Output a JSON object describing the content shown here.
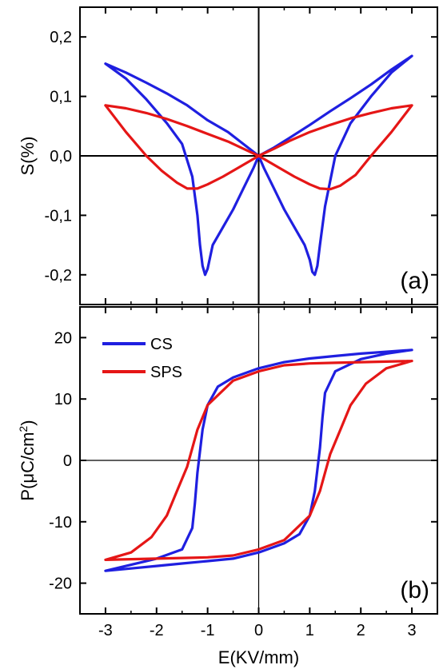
{
  "chart_data": [
    {
      "id": "a",
      "type": "line",
      "panel_label": "(a)",
      "ylabel": "S(%)",
      "xlim": [
        -3.5,
        3.5
      ],
      "ylim": [
        -0.25,
        0.25
      ],
      "yticks": [
        -0.2,
        -0.1,
        0.0,
        0.1,
        0.2
      ],
      "ytick_labels": [
        "-0,2",
        "-0,1",
        "0,0",
        "0,1",
        "0,2"
      ],
      "series": [
        {
          "color": "#1f1fe0",
          "x": [
            -3.0,
            -2.6,
            -2.2,
            -1.8,
            -1.5,
            -1.3,
            -1.2,
            -1.15,
            -1.1,
            -1.05,
            -1.0,
            -0.9,
            -0.7,
            -0.5,
            -0.3,
            -0.1,
            0.0,
            0.1,
            0.3,
            0.5,
            0.7,
            0.9,
            1.0,
            1.05,
            1.1,
            1.15,
            1.2,
            1.3,
            1.5,
            1.8,
            2.2,
            2.6,
            3.0,
            2.6,
            2.2,
            1.8,
            1.4,
            1.0,
            0.6,
            0.3,
            0.0,
            -0.3,
            -0.6,
            -1.0,
            -1.4,
            -1.8,
            -2.2,
            -2.6,
            -3.0
          ],
          "y": [
            0.155,
            0.13,
            0.095,
            0.055,
            0.02,
            -0.035,
            -0.1,
            -0.15,
            -0.185,
            -0.2,
            -0.19,
            -0.15,
            -0.12,
            -0.09,
            -0.055,
            -0.02,
            0.0,
            -0.02,
            -0.055,
            -0.09,
            -0.12,
            -0.15,
            -0.175,
            -0.195,
            -0.2,
            -0.185,
            -0.15,
            -0.085,
            0.0,
            0.055,
            0.1,
            0.14,
            0.168,
            0.145,
            0.12,
            0.097,
            0.075,
            0.052,
            0.03,
            0.014,
            0.0,
            0.02,
            0.04,
            0.06,
            0.085,
            0.105,
            0.123,
            0.14,
            0.155
          ]
        },
        {
          "color": "#e51616",
          "x": [
            -3.0,
            -2.6,
            -2.2,
            -1.9,
            -1.6,
            -1.4,
            -1.2,
            -1.0,
            -0.7,
            -0.4,
            -0.1,
            0.0,
            0.1,
            0.4,
            0.7,
            1.0,
            1.2,
            1.4,
            1.6,
            1.9,
            2.2,
            2.6,
            3.0,
            2.6,
            2.2,
            1.8,
            1.4,
            1.0,
            0.6,
            0.3,
            0.0,
            -0.3,
            -0.6,
            -1.0,
            -1.4,
            -1.8,
            -2.2,
            -2.6,
            -3.0
          ],
          "y": [
            0.085,
            0.04,
            0.0,
            -0.025,
            -0.045,
            -0.055,
            -0.055,
            -0.048,
            -0.035,
            -0.02,
            -0.005,
            0.0,
            -0.005,
            -0.02,
            -0.035,
            -0.048,
            -0.055,
            -0.056,
            -0.05,
            -0.032,
            0.0,
            0.04,
            0.085,
            0.08,
            0.072,
            0.063,
            0.052,
            0.04,
            0.025,
            0.012,
            0.0,
            0.012,
            0.024,
            0.037,
            0.05,
            0.062,
            0.072,
            0.08,
            0.085
          ]
        }
      ]
    },
    {
      "id": "b",
      "type": "line",
      "panel_label": "(b)",
      "xlabel": "E(KV/mm)",
      "ylabel_parts": [
        "P(",
        "μ",
        "C/cm",
        "2",
        ")"
      ],
      "xlim": [
        -3.5,
        3.5
      ],
      "ylim": [
        -25,
        25
      ],
      "xticks": [
        -3,
        -2,
        -1,
        0,
        1,
        2,
        3
      ],
      "xtick_labels": [
        "-3",
        "-2",
        "-1",
        "0",
        "1",
        "2",
        "3"
      ],
      "yticks": [
        -20,
        -10,
        0,
        10,
        20
      ],
      "ytick_labels": [
        "-20",
        "-10",
        "0",
        "10",
        "20"
      ],
      "legend_position": "top-left",
      "series": [
        {
          "name": "CS",
          "color": "#1f1fe0",
          "x": [
            3.0,
            2.5,
            2.0,
            1.5,
            1.0,
            0.5,
            0.0,
            -0.5,
            -0.8,
            -1.0,
            -1.1,
            -1.2,
            -1.25,
            -1.3,
            -1.5,
            -2.0,
            -2.5,
            -3.0,
            -2.5,
            -2.0,
            -1.5,
            -1.0,
            -0.5,
            0.0,
            0.5,
            0.8,
            1.0,
            1.1,
            1.2,
            1.25,
            1.3,
            1.5,
            2.0,
            2.5,
            3.0
          ],
          "y": [
            18.0,
            17.7,
            17.4,
            17.0,
            16.6,
            16.0,
            15.0,
            13.5,
            12.0,
            9.0,
            5.0,
            -2.0,
            -7.0,
            -11.0,
            -14.5,
            -16.0,
            -17.0,
            -18.0,
            -17.6,
            -17.2,
            -16.8,
            -16.4,
            -16.0,
            -15.0,
            -13.5,
            -12.0,
            -9.0,
            -5.0,
            2.0,
            7.0,
            11.0,
            14.5,
            16.5,
            17.4,
            18.0
          ]
        },
        {
          "name": "SPS",
          "color": "#e51616",
          "x": [
            3.0,
            2.5,
            2.0,
            1.5,
            1.0,
            0.5,
            0.0,
            -0.5,
            -1.0,
            -1.2,
            -1.4,
            -1.6,
            -1.8,
            -2.1,
            -2.5,
            -3.0,
            -2.5,
            -2.0,
            -1.5,
            -1.0,
            -0.5,
            0.0,
            0.5,
            1.0,
            1.2,
            1.4,
            1.6,
            1.8,
            2.1,
            2.5,
            3.0
          ],
          "y": [
            16.2,
            16.1,
            16.0,
            15.9,
            15.8,
            15.5,
            14.5,
            13.0,
            9.0,
            5.0,
            -1.0,
            -5.0,
            -9.0,
            -12.5,
            -15.0,
            -16.2,
            -16.1,
            -16.0,
            -15.9,
            -15.8,
            -15.5,
            -14.5,
            -13.0,
            -9.0,
            -5.0,
            1.0,
            5.0,
            9.0,
            12.5,
            15.0,
            16.2
          ]
        }
      ]
    }
  ]
}
